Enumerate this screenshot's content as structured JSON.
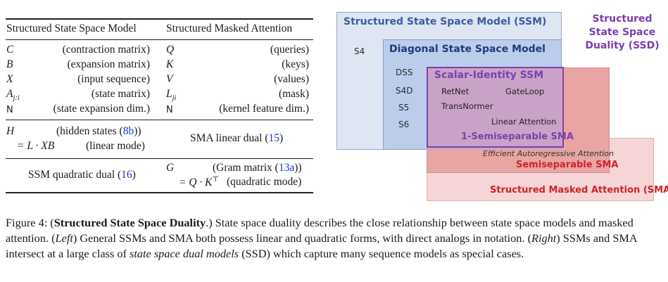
{
  "table": {
    "header_left": "Structured State Space Model",
    "header_right": "Structured Masked Attention",
    "rows": [
      {
        "l_sym": "C",
        "l_desc": "(contraction matrix)",
        "r_sym": "Q",
        "r_desc": "(queries)"
      },
      {
        "l_sym": "B",
        "l_desc": "(expansion matrix)",
        "r_sym": "K",
        "r_desc": "(keys)"
      },
      {
        "l_sym": "X",
        "l_desc": "(input sequence)",
        "r_sym": "V",
        "r_desc": "(values)"
      },
      {
        "l_sym": "A",
        "l_sub": "j:i",
        "l_desc": "(state matrix)",
        "r_sym": "L",
        "r_sub": "ji",
        "r_desc": "(mask)"
      },
      {
        "l_sym": "N",
        "l_desc": "(state expansion dim.)",
        "r_sym": "N",
        "r_desc": "(kernel feature dim.)"
      }
    ],
    "ssm_linear": {
      "sym": "H",
      "desc_pre": "(hidden states (",
      "ref": "8b",
      "desc_post": "))",
      "eq": "= L · XB",
      "mode": "(linear mode)"
    },
    "sma_linear": {
      "pre": "SMA linear dual (",
      "ref": "15",
      "post": ")"
    },
    "ssm_quadratic": {
      "pre": "SSM quadratic dual (",
      "ref": "16",
      "post": ")"
    },
    "sma_quadratic": {
      "sym": "G",
      "desc_pre": "(Gram matrix (",
      "ref": "13a",
      "desc_post": "))",
      "eq": "= Q · K",
      "sup": "⊤",
      "mode": "(quadratic mode)"
    }
  },
  "diagram": {
    "ssm_title": "Structured State Space Model (SSM)",
    "s4": "S4",
    "diag_title": "Diagonal State Space Model",
    "diag_items": [
      "DSS",
      "S4D",
      "S5",
      "S6"
    ],
    "scalar_title": "Scalar-Identity SSM",
    "retnet": "RetNet",
    "gateloop": "GateLoop",
    "transnormer": "TransNormer",
    "linear_attention": "Linear Attention",
    "one_semisep": "1-Semiseparable SMA",
    "efficient": "Efficient Autoregressive Attention",
    "semisep": "Semiseparable SMA",
    "sma_title": "Structured Masked Attention (SMA)",
    "ssd_title": [
      "Structured",
      "State Space",
      "Duality (SSD)"
    ],
    "colors": {
      "ssm_fill": "#dfe6f3",
      "ssm_border": "#9aa6bd",
      "ssm_text": "#3d5aa0",
      "diag_fill": "#bccdec",
      "diag_text": "#1f3a78",
      "scalar_border": "#7b3fae",
      "scalar_text": "#7b3fae",
      "semisep_fill": "#e9a4a4",
      "sma_fill": "#f5d5d5",
      "red_text": "#d0212a",
      "ssd_text": "#7b3fae"
    }
  },
  "caption": {
    "fig": "Figure 4: (",
    "fig_bold": "Structured State Space Duality",
    "s1": ".) State space duality describes the close relationship between state space models and masked attention. (",
    "left": "Left",
    "s2": ") General SSMs and SMA both possess linear and quadratic forms, with direct analogs in notation. (",
    "right": "Right",
    "s3": ") SSMs and SMA intersect at a large class of ",
    "ssd_ital": "state space dual models",
    "s4": " (SSD) which capture many sequence models as special cases."
  }
}
